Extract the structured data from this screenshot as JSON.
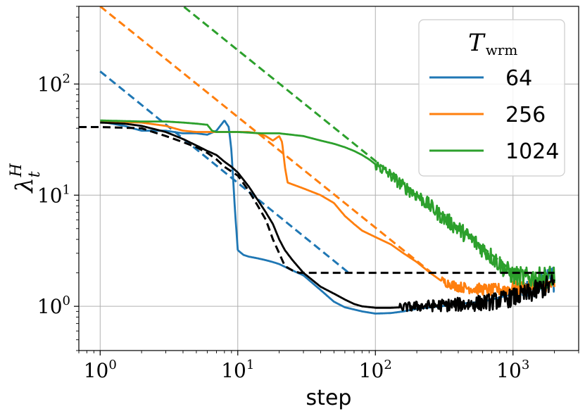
{
  "chart_data": {
    "type": "line",
    "xlabel": "step",
    "ylabel": "λ",
    "ylabel_sup": "H",
    "ylabel_sub": "t",
    "xscale": "log",
    "yscale": "log",
    "xlim": [
      0.7,
      3000
    ],
    "ylim": [
      0.4,
      500
    ],
    "grid": true,
    "x_ticks": [
      {
        "base": "10",
        "exp": "0",
        "value": 1
      },
      {
        "base": "10",
        "exp": "1",
        "value": 10
      },
      {
        "base": "10",
        "exp": "2",
        "value": 100
      },
      {
        "base": "10",
        "exp": "3",
        "value": 1000
      }
    ],
    "y_ticks": [
      {
        "base": "10",
        "exp": "0",
        "value": 1
      },
      {
        "base": "10",
        "exp": "1",
        "value": 10
      },
      {
        "base": "10",
        "exp": "2",
        "value": 100
      }
    ],
    "legend": {
      "position": "upper right",
      "title_main": "T",
      "title_sub": "wrm"
    },
    "series": [
      {
        "name": "64",
        "color": "#1f77b4",
        "style": "solid",
        "in_legend": true,
        "points": [
          [
            1,
            46
          ],
          [
            1.5,
            42
          ],
          [
            2,
            38
          ],
          [
            3,
            38
          ],
          [
            4,
            36
          ],
          [
            5,
            36
          ],
          [
            6,
            35
          ],
          [
            7,
            38
          ],
          [
            8,
            47
          ],
          [
            8.6,
            41
          ],
          [
            9,
            25
          ],
          [
            9.5,
            8
          ],
          [
            10,
            3.2
          ],
          [
            11,
            2.9
          ],
          [
            12,
            2.8
          ],
          [
            14,
            2.7
          ],
          [
            16,
            2.6
          ],
          [
            18,
            2.5
          ],
          [
            20,
            2.4
          ],
          [
            25,
            2.1
          ],
          [
            30,
            1.9
          ],
          [
            40,
            1.4
          ],
          [
            50,
            1.1
          ],
          [
            60,
            0.98
          ],
          [
            80,
            0.9
          ],
          [
            100,
            0.86
          ],
          [
            130,
            0.87
          ],
          [
            160,
            0.9
          ],
          [
            200,
            0.95
          ],
          [
            300,
            1.0
          ],
          [
            400,
            1.05
          ],
          [
            600,
            1.1
          ],
          [
            800,
            1.2
          ],
          [
            1000,
            1.3
          ],
          [
            1300,
            1.4
          ],
          [
            1600,
            1.6
          ],
          [
            2000,
            1.8
          ]
        ],
        "noise": [
          [
            1000,
            0.15
          ],
          [
            2000,
            0.25
          ]
        ]
      },
      {
        "name": "64",
        "color": "#1f77b4",
        "style": "dashed",
        "in_legend": false,
        "points": [
          [
            1,
            130
          ],
          [
            64,
            2.0
          ]
        ]
      },
      {
        "name": "256",
        "color": "#ff7f0e",
        "style": "solid",
        "in_legend": true,
        "points": [
          [
            1,
            46
          ],
          [
            2,
            45
          ],
          [
            3,
            42
          ],
          [
            4,
            38
          ],
          [
            5,
            37
          ],
          [
            6,
            37
          ],
          [
            8,
            37
          ],
          [
            10,
            37
          ],
          [
            12,
            37
          ],
          [
            14,
            36
          ],
          [
            16,
            34
          ],
          [
            18,
            31
          ],
          [
            20,
            34
          ],
          [
            21,
            30
          ],
          [
            22,
            18
          ],
          [
            23,
            13
          ],
          [
            25,
            12.5
          ],
          [
            30,
            11.5
          ],
          [
            40,
            10
          ],
          [
            50,
            8.5
          ],
          [
            60,
            6.5
          ],
          [
            70,
            5.5
          ],
          [
            80,
            4.8
          ],
          [
            100,
            4.2
          ],
          [
            130,
            3.6
          ],
          [
            160,
            3.0
          ],
          [
            200,
            2.5
          ],
          [
            250,
            2.0
          ],
          [
            300,
            1.7
          ],
          [
            400,
            1.5
          ],
          [
            500,
            1.45
          ],
          [
            700,
            1.4
          ],
          [
            1000,
            1.45
          ],
          [
            1500,
            1.5
          ],
          [
            2000,
            1.6
          ]
        ],
        "noise": [
          [
            300,
            0.08
          ],
          [
            2000,
            0.15
          ]
        ]
      },
      {
        "name": "256",
        "color": "#ff7f0e",
        "style": "dashed",
        "in_legend": false,
        "points": [
          [
            1,
            500
          ],
          [
            256,
            2.0
          ]
        ]
      },
      {
        "name": "1024",
        "color": "#2ca02c",
        "style": "solid",
        "in_legend": true,
        "points": [
          [
            1,
            47
          ],
          [
            2,
            46
          ],
          [
            3,
            46
          ],
          [
            4,
            45
          ],
          [
            5,
            44
          ],
          [
            6,
            43
          ],
          [
            6.5,
            38
          ],
          [
            7,
            37
          ],
          [
            8,
            37
          ],
          [
            10,
            37
          ],
          [
            15,
            36
          ],
          [
            20,
            36
          ],
          [
            30,
            34
          ],
          [
            40,
            31
          ],
          [
            50,
            29
          ],
          [
            60,
            27
          ],
          [
            70,
            25
          ],
          [
            80,
            23
          ],
          [
            90,
            21
          ],
          [
            100,
            19
          ],
          [
            130,
            15
          ],
          [
            160,
            12
          ],
          [
            200,
            10
          ],
          [
            250,
            8
          ],
          [
            300,
            6.5
          ],
          [
            400,
            5
          ],
          [
            500,
            4
          ],
          [
            600,
            3.3
          ],
          [
            700,
            2.8
          ],
          [
            800,
            2.4
          ],
          [
            900,
            2.1
          ],
          [
            1000,
            1.9
          ],
          [
            1300,
            1.8
          ],
          [
            1600,
            1.8
          ],
          [
            2000,
            1.9
          ]
        ],
        "noise": [
          [
            100,
            0.1
          ],
          [
            2000,
            0.2
          ]
        ]
      },
      {
        "name": "1024",
        "color": "#2ca02c",
        "style": "dashed",
        "in_legend": false,
        "points": [
          [
            1,
            2000
          ],
          [
            1024,
            2.0
          ]
        ]
      },
      {
        "name": "",
        "color": "#000000",
        "style": "solid",
        "in_legend": false,
        "points": [
          [
            1,
            45
          ],
          [
            1.5,
            44
          ],
          [
            2,
            42
          ],
          [
            3,
            37
          ],
          [
            4,
            32
          ],
          [
            5,
            28
          ],
          [
            6,
            25
          ],
          [
            7,
            23
          ],
          [
            8,
            20
          ],
          [
            9,
            18
          ],
          [
            10,
            16
          ],
          [
            12,
            12
          ],
          [
            14,
            9
          ],
          [
            16,
            7
          ],
          [
            18,
            5.5
          ],
          [
            20,
            4
          ],
          [
            22,
            3.2
          ],
          [
            25,
            2.6
          ],
          [
            30,
            2.0
          ],
          [
            40,
            1.5
          ],
          [
            50,
            1.3
          ],
          [
            60,
            1.15
          ],
          [
            70,
            1.05
          ],
          [
            80,
            1.0
          ],
          [
            100,
            0.97
          ],
          [
            130,
            0.97
          ],
          [
            160,
            0.98
          ],
          [
            200,
            1.0
          ],
          [
            300,
            1.02
          ],
          [
            500,
            1.05
          ],
          [
            700,
            1.1
          ],
          [
            1000,
            1.2
          ],
          [
            1300,
            1.3
          ],
          [
            1600,
            1.45
          ],
          [
            2000,
            1.6
          ]
        ],
        "noise": [
          [
            150,
            0.08
          ],
          [
            2000,
            0.2
          ]
        ]
      },
      {
        "name": "",
        "color": "#000000",
        "style": "dashed",
        "in_legend": false,
        "points": [
          [
            0.7,
            41
          ],
          [
            1,
            41
          ],
          [
            2,
            40
          ],
          [
            3,
            34
          ],
          [
            4,
            30
          ],
          [
            5,
            27
          ],
          [
            6,
            24
          ],
          [
            7,
            21
          ],
          [
            8,
            18
          ],
          [
            10,
            15
          ],
          [
            12,
            11
          ],
          [
            14,
            8
          ],
          [
            16,
            6
          ],
          [
            18,
            4
          ],
          [
            20,
            3
          ],
          [
            22,
            2.3
          ],
          [
            25,
            2.1
          ],
          [
            28,
            2.0
          ],
          [
            2000,
            2.0
          ]
        ]
      }
    ]
  }
}
